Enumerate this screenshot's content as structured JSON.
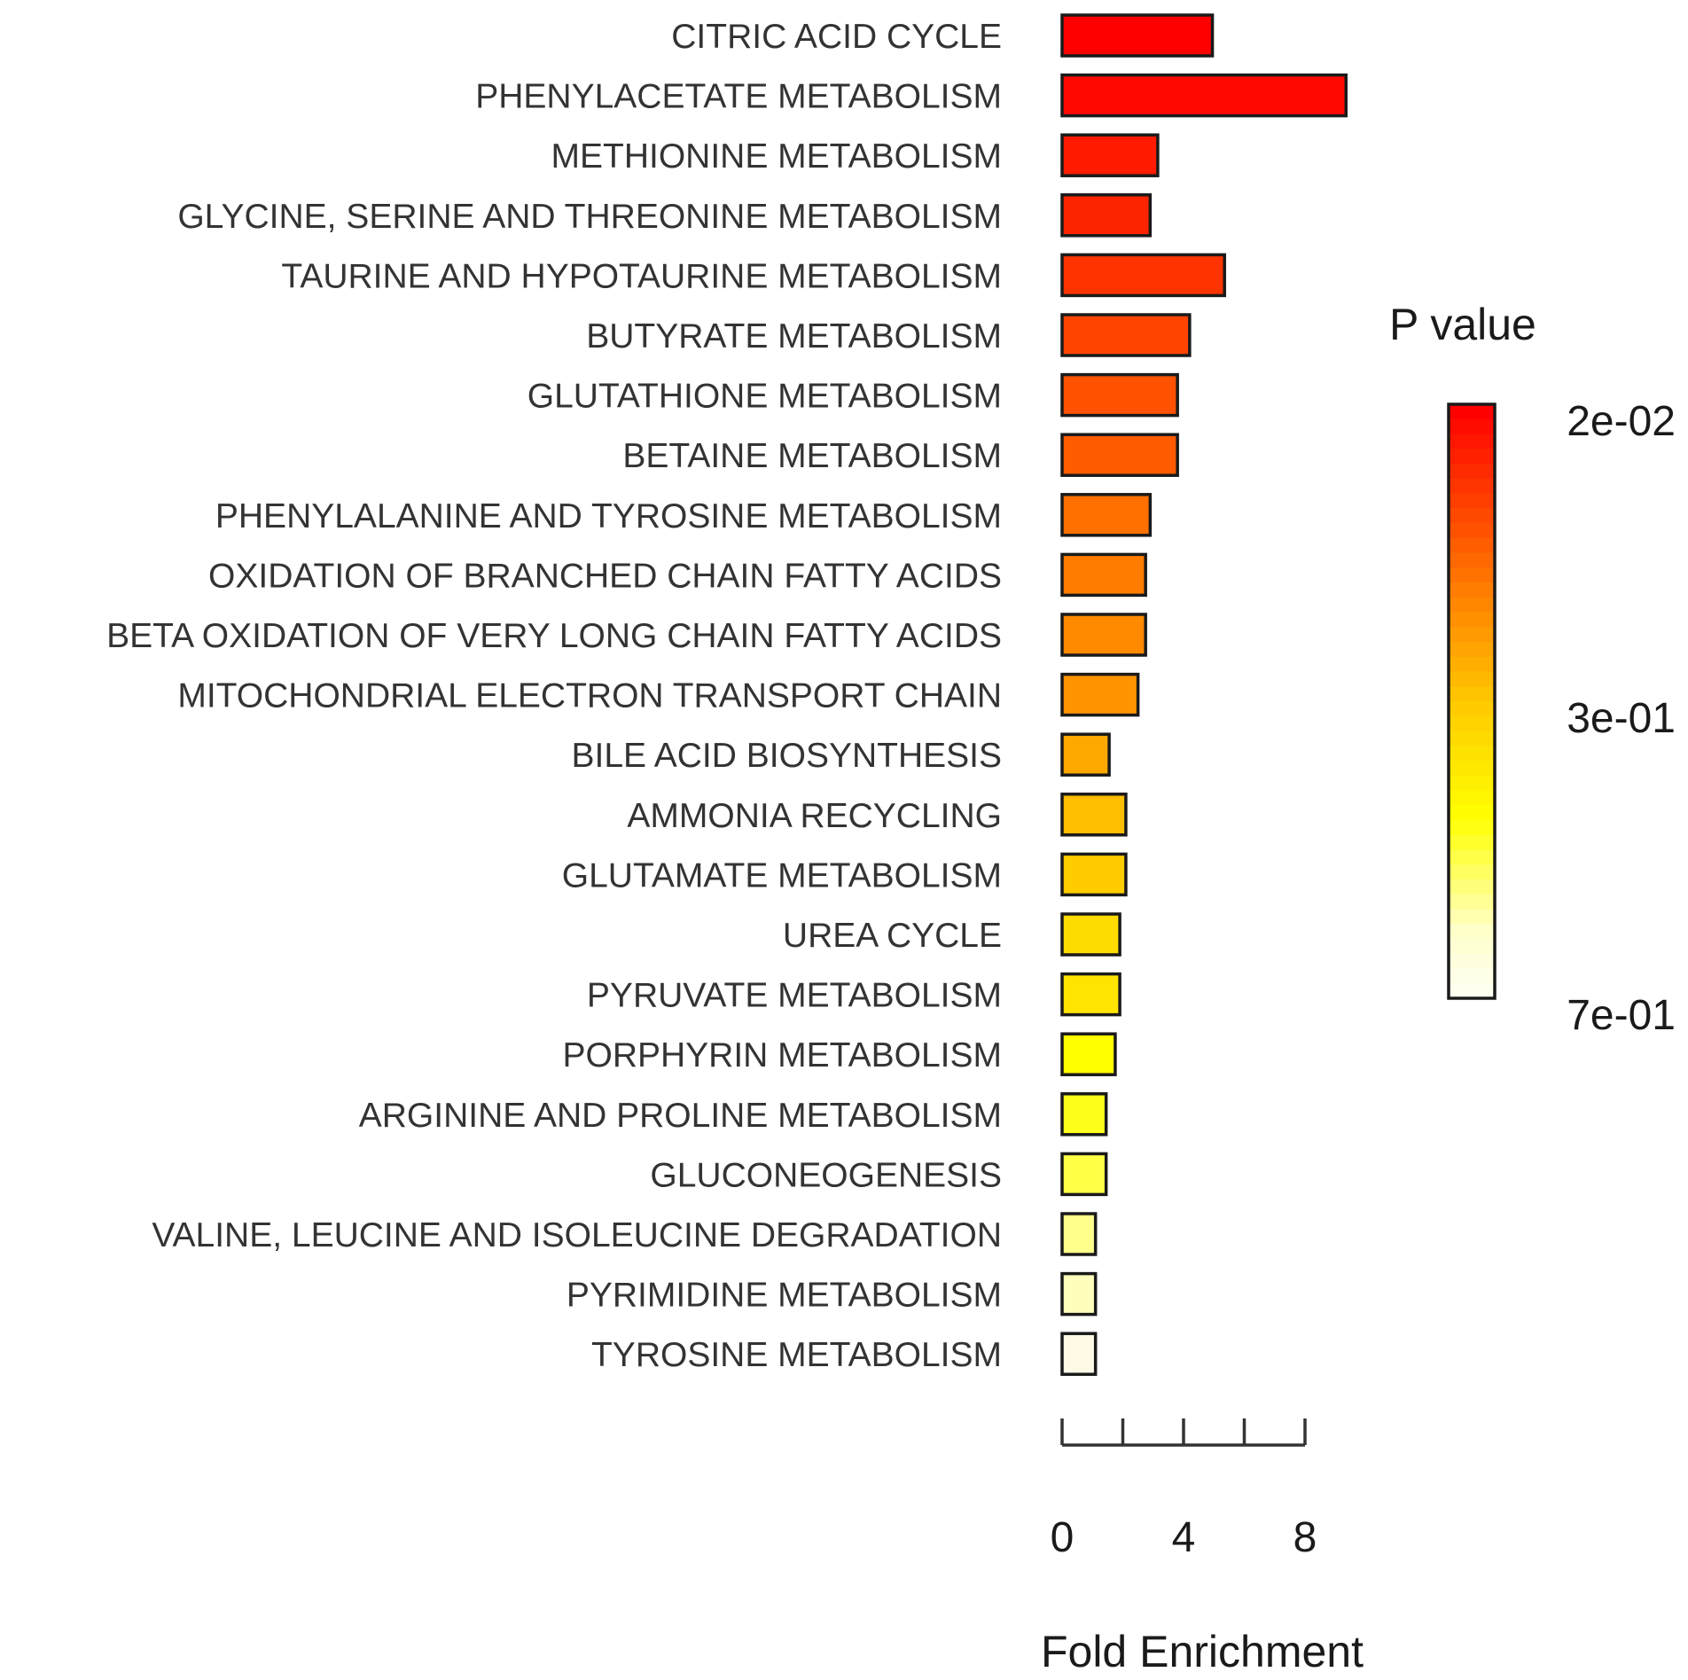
{
  "chart_data": {
    "type": "bar",
    "orientation": "horizontal",
    "title": "",
    "xlabel": "Fold Enrichment",
    "ylabel": "",
    "xlim": [
      0,
      8
    ],
    "x_ticks": [
      0,
      4,
      8
    ],
    "x_minor_ticks": [
      0,
      2,
      4,
      6,
      8
    ],
    "categories": [
      "CITRIC ACID CYCLE",
      "PHENYLACETATE METABOLISM",
      "METHIONINE METABOLISM",
      "GLYCINE, SERINE AND THREONINE METABOLISM",
      "TAURINE AND HYPOTAURINE METABOLISM",
      "BUTYRATE METABOLISM",
      "GLUTATHIONE METABOLISM",
      "BETAINE METABOLISM",
      "PHENYLALANINE AND TYROSINE METABOLISM",
      "OXIDATION OF BRANCHED CHAIN FATTY ACIDS",
      "BETA OXIDATION OF VERY LONG CHAIN FATTY ACIDS",
      "MITOCHONDRIAL ELECTRON TRANSPORT CHAIN",
      "BILE ACID BIOSYNTHESIS",
      "AMMONIA RECYCLING",
      "GLUTAMATE METABOLISM",
      "UREA CYCLE",
      "PYRUVATE METABOLISM",
      "PORPHYRIN METABOLISM",
      "ARGININE AND PROLINE METABOLISM",
      "GLUCONEOGENESIS",
      "VALINE, LEUCINE AND ISOLEUCINE DEGRADATION",
      "PYRIMIDINE METABOLISM",
      "TYROSINE METABOLISM"
    ],
    "values": [
      4.95,
      9.35,
      3.15,
      2.9,
      5.35,
      4.2,
      3.8,
      3.8,
      2.9,
      2.75,
      2.75,
      2.5,
      1.55,
      2.1,
      2.1,
      1.9,
      1.9,
      1.75,
      1.45,
      1.45,
      1.1,
      1.1,
      1.1
    ],
    "bar_colors": [
      "#ff0000",
      "#ff0800",
      "#ff1a00",
      "#ff2400",
      "#ff3300",
      "#ff4400",
      "#ff5200",
      "#ff5c00",
      "#ff7000",
      "#ff7c00",
      "#ff8a00",
      "#ff9400",
      "#ffa800",
      "#ffbe00",
      "#ffcc00",
      "#ffdc00",
      "#ffe400",
      "#ffff00",
      "#ffff1c",
      "#ffff46",
      "#ffff8c",
      "#ffffbb",
      "#fffae6"
    ],
    "legend": {
      "title": "P value",
      "labels": [
        "2e-02",
        "3e-01",
        "7e-01"
      ],
      "gradient_colors": [
        "#ff0000",
        "#ff2a00",
        "#ff5000",
        "#ff7a00",
        "#ffa000",
        "#ffc800",
        "#ffe400",
        "#ffff00",
        "#ffff66",
        "#ffffcc",
        "#fffff0"
      ],
      "placement": "right"
    }
  }
}
